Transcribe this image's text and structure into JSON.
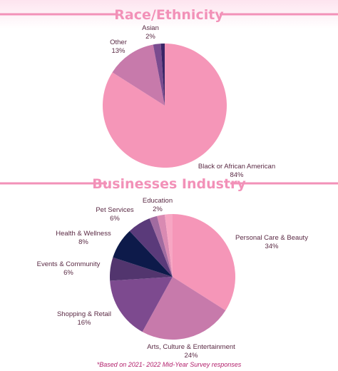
{
  "chart_data": [
    {
      "type": "pie",
      "title": "Race/Ethnicity",
      "slices": [
        {
          "label": "Black or African American",
          "value": 84,
          "display": "84%",
          "color": "#f596b8"
        },
        {
          "label": "Other",
          "value": 13,
          "display": "13%",
          "color": "#c77aab"
        },
        {
          "label": "Asian",
          "value": 2,
          "display": "2%",
          "color": "#7a4b8f"
        },
        {
          "label": "",
          "value": 1,
          "display": "",
          "color": "#3a2466"
        }
      ]
    },
    {
      "type": "pie",
      "title": "Businesses Industry",
      "slices": [
        {
          "label": "Personal Care & Beauty",
          "value": 34,
          "display": "34%",
          "color": "#f596b8"
        },
        {
          "label": "Arts, Culture & Entertainment",
          "value": 24,
          "display": "24%",
          "color": "#c77aab"
        },
        {
          "label": "Shopping & Retail",
          "value": 16,
          "display": "16%",
          "color": "#7d4a8f"
        },
        {
          "label": "Events & Community",
          "value": 6,
          "display": "6%",
          "color": "#52356e"
        },
        {
          "label": "Health & Wellness",
          "value": 8,
          "display": "8%",
          "color": "#0d1a4a"
        },
        {
          "label": "Pet Services",
          "value": 6,
          "display": "6%",
          "color": "#5a3a7a"
        },
        {
          "label": "",
          "value": 2,
          "display": "",
          "color": "#a16ba0"
        },
        {
          "label": "",
          "value": 2,
          "display": "",
          "color": "#d98ab2"
        },
        {
          "label": "Education",
          "value": 2,
          "display": "2%",
          "color": "#f7a6c3"
        }
      ]
    }
  ],
  "footnote": "*Based on 2021- 2022 Mid-Year Survey responses",
  "colors": {
    "accent": "#f291b8",
    "rule": "#f291b8",
    "label_text": "#5a2a44",
    "footnote": "#b21f6b"
  }
}
